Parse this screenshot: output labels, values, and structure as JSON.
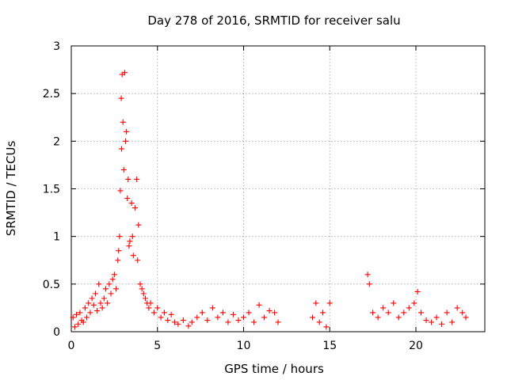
{
  "chart_data": {
    "type": "scatter",
    "title": "Day 278 of 2016, SRMTID for receiver salu",
    "xlabel": "GPS time / hours",
    "ylabel": "SRMTID / TECUs",
    "xlim": [
      0,
      24
    ],
    "ylim": [
      0,
      3
    ],
    "xticks": [
      0,
      5,
      10,
      15,
      20
    ],
    "yticks": [
      0,
      0.5,
      1,
      1.5,
      2,
      2.5,
      3
    ],
    "grid": true,
    "marker": "plus",
    "color": "#ff0000",
    "series": [
      {
        "values": [
          [
            0.1,
            0.15
          ],
          [
            0.2,
            0.05
          ],
          [
            0.3,
            0.18
          ],
          [
            0.4,
            0.08
          ],
          [
            0.5,
            0.2
          ],
          [
            0.6,
            0.12
          ],
          [
            0.7,
            0.1
          ],
          [
            0.8,
            0.25
          ],
          [
            0.9,
            0.15
          ],
          [
            1.0,
            0.3
          ],
          [
            1.1,
            0.2
          ],
          [
            1.2,
            0.35
          ],
          [
            1.3,
            0.28
          ],
          [
            1.4,
            0.4
          ],
          [
            1.5,
            0.22
          ],
          [
            1.6,
            0.5
          ],
          [
            1.7,
            0.3
          ],
          [
            1.8,
            0.25
          ],
          [
            1.9,
            0.35
          ],
          [
            2.0,
            0.45
          ],
          [
            2.1,
            0.3
          ],
          [
            2.2,
            0.5
          ],
          [
            2.3,
            0.4
          ],
          [
            2.4,
            0.55
          ],
          [
            2.5,
            0.6
          ],
          [
            2.6,
            0.45
          ],
          [
            2.7,
            0.75
          ],
          [
            2.75,
            0.85
          ],
          [
            2.8,
            1.0
          ],
          [
            2.85,
            1.48
          ],
          [
            2.9,
            2.45
          ],
          [
            2.92,
            1.92
          ],
          [
            2.95,
            2.7
          ],
          [
            3.0,
            2.2
          ],
          [
            3.05,
            1.7
          ],
          [
            3.1,
            2.72
          ],
          [
            3.15,
            2.0
          ],
          [
            3.2,
            2.1
          ],
          [
            3.25,
            1.4
          ],
          [
            3.3,
            1.6
          ],
          [
            3.35,
            0.9
          ],
          [
            3.4,
            0.95
          ],
          [
            3.5,
            1.35
          ],
          [
            3.55,
            1.0
          ],
          [
            3.6,
            0.8
          ],
          [
            3.7,
            1.3
          ],
          [
            3.8,
            1.6
          ],
          [
            3.85,
            0.75
          ],
          [
            3.9,
            1.12
          ],
          [
            4.0,
            0.5
          ],
          [
            4.1,
            0.45
          ],
          [
            4.2,
            0.4
          ],
          [
            4.3,
            0.35
          ],
          [
            4.4,
            0.3
          ],
          [
            4.5,
            0.25
          ],
          [
            4.6,
            0.3
          ],
          [
            4.8,
            0.2
          ],
          [
            5.0,
            0.25
          ],
          [
            5.2,
            0.15
          ],
          [
            5.4,
            0.2
          ],
          [
            5.6,
            0.12
          ],
          [
            5.8,
            0.18
          ],
          [
            6.0,
            0.1
          ],
          [
            6.2,
            0.08
          ],
          [
            6.5,
            0.12
          ],
          [
            6.8,
            0.06
          ],
          [
            7.0,
            0.1
          ],
          [
            7.3,
            0.15
          ],
          [
            7.6,
            0.2
          ],
          [
            7.9,
            0.12
          ],
          [
            8.2,
            0.25
          ],
          [
            8.5,
            0.15
          ],
          [
            8.8,
            0.2
          ],
          [
            9.1,
            0.1
          ],
          [
            9.4,
            0.18
          ],
          [
            9.7,
            0.12
          ],
          [
            10.0,
            0.15
          ],
          [
            10.3,
            0.2
          ],
          [
            10.6,
            0.1
          ],
          [
            10.9,
            0.28
          ],
          [
            11.2,
            0.15
          ],
          [
            11.5,
            0.22
          ],
          [
            11.8,
            0.2
          ],
          [
            12.0,
            0.1
          ],
          [
            14.0,
            0.15
          ],
          [
            14.2,
            0.3
          ],
          [
            14.4,
            0.1
          ],
          [
            14.6,
            0.2
          ],
          [
            14.8,
            0.05
          ],
          [
            15.0,
            0.3
          ],
          [
            17.2,
            0.6
          ],
          [
            17.3,
            0.5
          ],
          [
            17.5,
            0.2
          ],
          [
            17.8,
            0.15
          ],
          [
            18.1,
            0.25
          ],
          [
            18.4,
            0.2
          ],
          [
            18.7,
            0.3
          ],
          [
            19.0,
            0.15
          ],
          [
            19.3,
            0.2
          ],
          [
            19.6,
            0.25
          ],
          [
            19.9,
            0.3
          ],
          [
            20.1,
            0.42
          ],
          [
            20.3,
            0.2
          ],
          [
            20.6,
            0.12
          ],
          [
            20.9,
            0.1
          ],
          [
            21.2,
            0.15
          ],
          [
            21.5,
            0.08
          ],
          [
            21.8,
            0.2
          ],
          [
            22.1,
            0.1
          ],
          [
            22.4,
            0.25
          ],
          [
            22.7,
            0.2
          ],
          [
            22.9,
            0.15
          ]
        ]
      }
    ]
  }
}
